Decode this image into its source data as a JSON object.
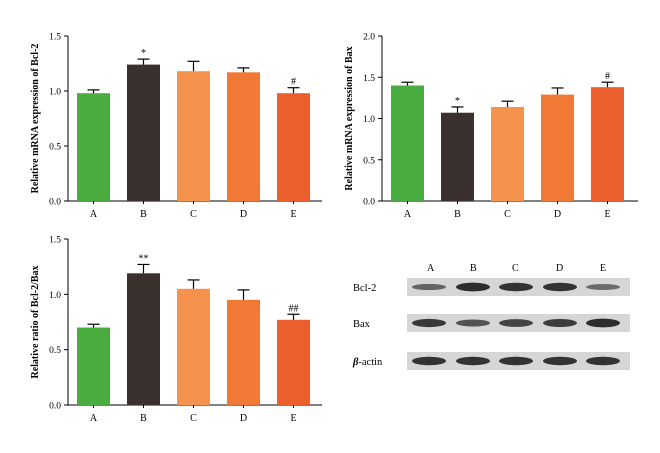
{
  "colors": {
    "A": "#4aac3f",
    "B": "#3a302d",
    "C": "#f5924e",
    "D": "#f07a35",
    "E": "#ec5f2c",
    "error": "#000000",
    "blot_background": "#d6d6d6",
    "band": "#1e1e1e"
  },
  "chart_data": [
    {
      "type": "bar",
      "categories": [
        "A",
        "B",
        "C",
        "D",
        "E"
      ],
      "values": [
        0.98,
        1.24,
        1.18,
        1.17,
        0.98
      ],
      "errors": [
        0.03,
        0.05,
        0.09,
        0.04,
        0.05
      ],
      "annotations": [
        "",
        "*",
        "",
        "",
        "#"
      ],
      "ylabel": "Relative mRNA expression of Bcl-2",
      "ylim": [
        0,
        1.5
      ],
      "yticks": [
        "0.0",
        "0.5",
        "1.0",
        "1.5"
      ]
    },
    {
      "type": "bar",
      "categories": [
        "A",
        "B",
        "C",
        "D",
        "E"
      ],
      "values": [
        1.4,
        1.07,
        1.14,
        1.29,
        1.38
      ],
      "errors": [
        0.04,
        0.07,
        0.07,
        0.08,
        0.06
      ],
      "annotations": [
        "",
        "*",
        "",
        "",
        "#"
      ],
      "ylabel": "Relative mRNA expression of Bax",
      "ylim": [
        0,
        2.0
      ],
      "yticks": [
        "0.0",
        "0.5",
        "1.0",
        "1.5",
        "2.0"
      ]
    },
    {
      "type": "bar",
      "categories": [
        "A",
        "B",
        "C",
        "D",
        "E"
      ],
      "values": [
        0.7,
        1.19,
        1.05,
        0.95,
        0.77
      ],
      "errors": [
        0.03,
        0.08,
        0.08,
        0.09,
        0.05
      ],
      "annotations": [
        "",
        "**",
        "",
        "",
        "##"
      ],
      "ylabel": "Relative ratio of Bcl-2/Bax",
      "ylim": [
        0,
        1.5
      ],
      "yticks": [
        "0.0",
        "0.5",
        "1.0",
        "1.5"
      ]
    }
  ],
  "blot": {
    "lanes": [
      "A",
      "B",
      "C",
      "D",
      "E"
    ],
    "rows": [
      {
        "label": "Bcl-2",
        "intensity": [
          0.45,
          0.95,
          0.9,
          0.9,
          0.4
        ]
      },
      {
        "label": "Bax",
        "intensity": [
          0.85,
          0.6,
          0.75,
          0.8,
          0.95
        ]
      },
      {
        "label_prefix": "β",
        "label": "-actin",
        "intensity": [
          0.9,
          0.9,
          0.9,
          0.9,
          0.9
        ]
      }
    ]
  }
}
